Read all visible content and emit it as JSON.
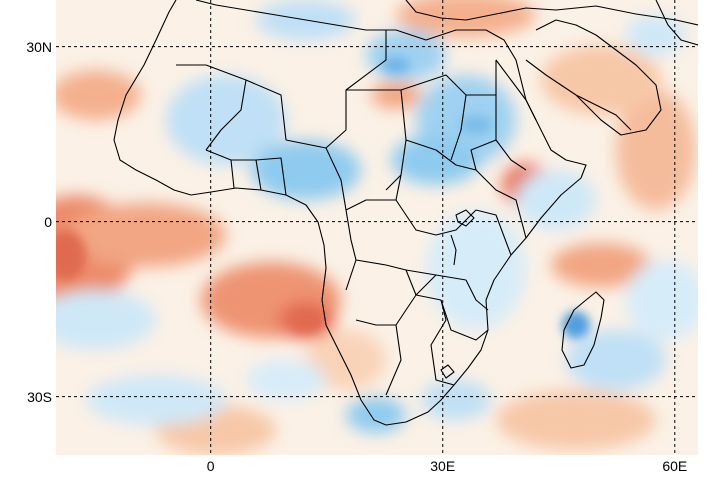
{
  "map": {
    "latitude_labels": [
      "30N",
      "0",
      "30S"
    ],
    "longitude_labels": [
      "0",
      "30E",
      "60E"
    ],
    "latitude_values": [
      30,
      0,
      -30
    ],
    "longitude_values": [
      0,
      30,
      60
    ],
    "lon_range": [
      -20,
      63
    ],
    "lat_range": [
      -40,
      38
    ],
    "grid_style": "dashed",
    "colors": {
      "warm_strong": "#e8735a",
      "warm_mid": "#f3a47f",
      "warm_light": "#f9d3b8",
      "neutral": "#fdf6ee",
      "cool_light": "#cfe8f8",
      "cool_mid": "#8fcbef",
      "cool_strong": "#4f9fe0",
      "border": "#000000",
      "grid": "#000000"
    }
  }
}
